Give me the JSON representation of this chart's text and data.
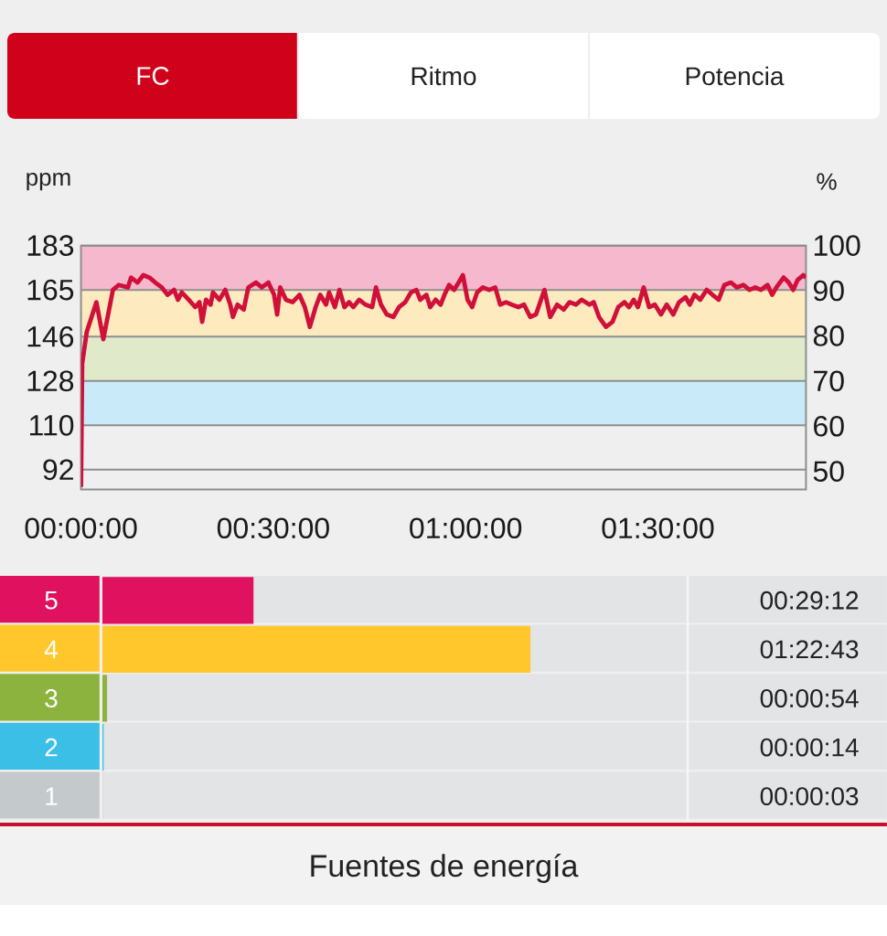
{
  "chart_data": [
    {
      "type": "line",
      "ylabel": "ppm",
      "y2label": "%",
      "annotations": [
        "FC",
        "Ritmo",
        "Potencia"
      ],
      "x": [
        0,
        0.003,
        0.015,
        0.04,
        0.058,
        0.083,
        0.098,
        0.122,
        0.13,
        0.147,
        0.162,
        0.178,
        0.193,
        0.21,
        0.225,
        0.242,
        0.252,
        0.262,
        0.28,
        0.297,
        0.308,
        0.315,
        0.325,
        0.337,
        0.343,
        0.36,
        0.375,
        0.388,
        0.395,
        0.407,
        0.423,
        0.435,
        0.455,
        0.47,
        0.487,
        0.502,
        0.51,
        0.518,
        0.533,
        0.55,
        0.568,
        0.582,
        0.595,
        0.61,
        0.622,
        0.637,
        0.645,
        0.66,
        0.672,
        0.685,
        0.697,
        0.708,
        0.723,
        0.74,
        0.757,
        0.767,
        0.78,
        0.795,
        0.812,
        0.827,
        0.843,
        0.858,
        0.872,
        0.882,
        0.898,
        0.908,
        0.922,
        0.935,
        0.945,
        0.957,
        0.97,
        0.982,
        0.993,
        1.005,
        1.017,
        1.03,
        1.045,
        1.062,
        1.077,
        1.09,
        1.105,
        1.12,
        1.137,
        1.152,
        1.168,
        1.183,
        1.205,
        1.22,
        1.238,
        1.255,
        1.27,
        1.287,
        1.302,
        1.322,
        1.333,
        1.347,
        1.365,
        1.382,
        1.397,
        1.413,
        1.425,
        1.437,
        1.448,
        1.463,
        1.477,
        1.492,
        1.508,
        1.523,
        1.54,
        1.555,
        1.572,
        1.583,
        1.595,
        1.61,
        1.627,
        1.642,
        1.658,
        1.673,
        1.69,
        1.705,
        1.722,
        1.738,
        1.753,
        1.768,
        1.785,
        1.797,
        1.808,
        1.827,
        1.84,
        1.852,
        1.863,
        1.878,
        1.885
      ],
      "series": [
        {
          "color": "#d0103a",
          "values": [
            85,
            135,
            148,
            160,
            145,
            165,
            167,
            166,
            170,
            168,
            171,
            170,
            168,
            166,
            163,
            165,
            161,
            164,
            161,
            158,
            160,
            152,
            161,
            159,
            164,
            161,
            165,
            159,
            154,
            159,
            157,
            166,
            168,
            166,
            168,
            163,
            155,
            166,
            161,
            160,
            163,
            158,
            150,
            158,
            163,
            159,
            164,
            158,
            165,
            158,
            160,
            158,
            161,
            159,
            158,
            166,
            159,
            155,
            154,
            158,
            160,
            164,
            165,
            161,
            163,
            158,
            161,
            159,
            163,
            167,
            165,
            168,
            171,
            161,
            158,
            164,
            166,
            165,
            166,
            159,
            160,
            159,
            158,
            159,
            154,
            155,
            165,
            154,
            159,
            157,
            160,
            159,
            161,
            159,
            160,
            154,
            150,
            152,
            158,
            160,
            158,
            161,
            158,
            166,
            158,
            159,
            155,
            159,
            155,
            160,
            162,
            159,
            163,
            161,
            165,
            163,
            161,
            167,
            168,
            166,
            167,
            165,
            166,
            165,
            167,
            163,
            166,
            170,
            168,
            165,
            169,
            171,
            170
          ]
        }
      ],
      "xlim": [
        0,
        1.885
      ],
      "xticks": [
        {
          "value": 0,
          "label": "00:00:00"
        },
        {
          "value": 0.5,
          "label": "00:30:00"
        },
        {
          "value": 1,
          "label": "01:00:00"
        },
        {
          "value": 1.5,
          "label": "01:30:00"
        }
      ],
      "ylim": [
        84,
        183
      ],
      "yticks": [
        92,
        110,
        128,
        146,
        165,
        183
      ],
      "y2lim": [
        46,
        100
      ],
      "y2ticks": [
        50,
        60,
        70,
        80,
        90,
        100
      ],
      "bands": [
        {
          "axis": "y2",
          "from": 90,
          "to": 100,
          "color": "#f5b8cd"
        },
        {
          "axis": "y2",
          "from": 80,
          "to": 90,
          "color": "#fdebbf"
        },
        {
          "axis": "y2",
          "from": 70,
          "to": 80,
          "color": "#e1e9cb"
        },
        {
          "axis": "y2",
          "from": 60,
          "to": 70,
          "color": "#c9ebf9"
        }
      ],
      "grid": "y"
    },
    {
      "type": "bar",
      "orientation": "horizontal",
      "categories": [
        "5",
        "4",
        "3",
        "2",
        "1"
      ],
      "values": [
        29.2,
        82.717,
        0.9,
        0.233,
        0.05
      ],
      "colors": [
        "#e0115f",
        "#ffc72c",
        "#8db33f",
        "#3bbfe6",
        "#c4c9cb"
      ],
      "value_labels": [
        "00:29:12",
        "01:22:43",
        "00:00:54",
        "00:00:14",
        "00:00:03"
      ],
      "xlim": [
        0,
        113.1
      ],
      "annotations": [
        "Fuentes de energía"
      ]
    }
  ]
}
